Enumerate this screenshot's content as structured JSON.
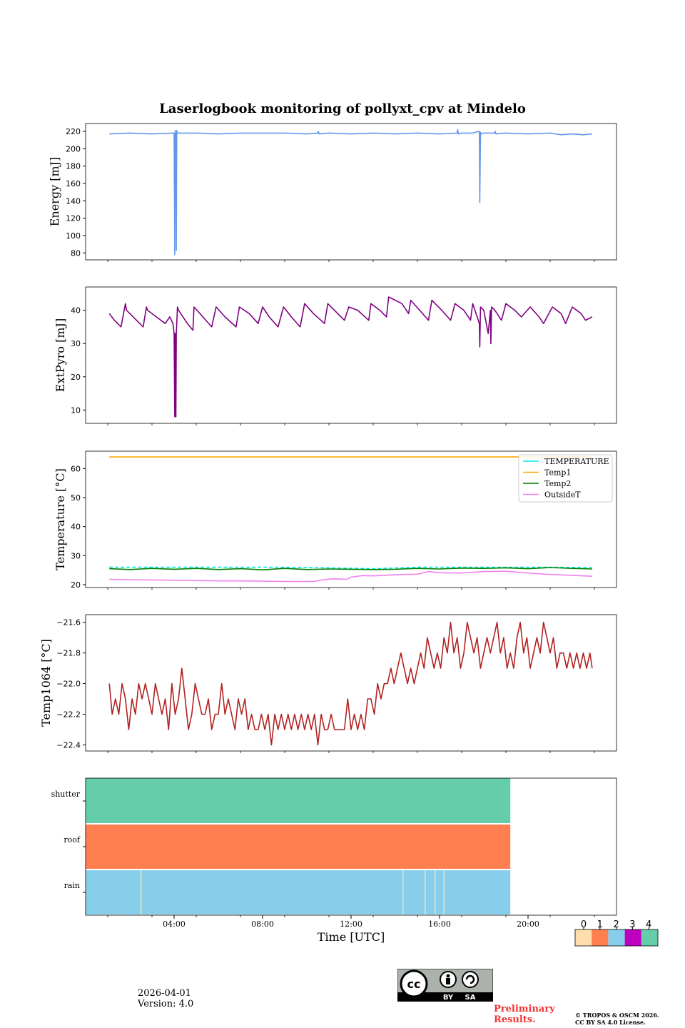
{
  "title": "Laserlogbook monitoring of pollyxt_cpv at Mindelo",
  "xlabel": "Time [UTC]",
  "date": "2026-04-01",
  "version": "Version: 4.0",
  "preliminary_line1": "Preliminary",
  "preliminary_line2": "Results.",
  "copyright_line1": "© TROPOS & OSCM 2026.",
  "copyright_line2": "CC BY SA 4.0 License.",
  "license_badge": {
    "by": "BY",
    "sa": "SA"
  },
  "chart_data": [
    {
      "type": "line",
      "ylabel": "Energy [mJ]",
      "xlim": [
        0.0,
        24.0
      ],
      "ylim": [
        72,
        229
      ],
      "yticks": [
        80,
        100,
        120,
        140,
        160,
        180,
        200,
        220
      ],
      "xticks_hours": [
        1,
        3,
        5,
        7,
        9,
        11,
        13,
        15,
        17,
        19,
        21,
        23
      ],
      "color": "#6495ED",
      "series": [
        {
          "name": "Energy",
          "x": [
            1.07,
            2.0,
            3.0,
            3.95,
            4.0,
            4.03,
            4.05,
            4.08,
            4.1,
            4.12,
            4.15,
            5.0,
            6.0,
            7.0,
            8.0,
            9.0,
            10.0,
            10.5,
            10.52,
            10.55,
            11.0,
            12.0,
            13.0,
            14.0,
            15.0,
            16.0,
            16.8,
            16.82,
            16.85,
            17.0,
            17.5,
            17.8,
            17.82,
            17.85,
            17.88,
            18.0,
            18.5,
            18.52,
            18.55,
            19.0,
            20.0,
            21.0,
            21.5,
            22.0,
            22.5,
            22.9
          ],
          "y": [
            217,
            218,
            217,
            218,
            218,
            78,
            221,
            213,
            83,
            221,
            218,
            218,
            217,
            218,
            218,
            218,
            217,
            218,
            220,
            217,
            218,
            217,
            218,
            217,
            218,
            217,
            218,
            222,
            217,
            218,
            218,
            220,
            138,
            219,
            217,
            218,
            218,
            220,
            217,
            218,
            217,
            218,
            216,
            217,
            216,
            217
          ]
        }
      ]
    },
    {
      "type": "line",
      "ylabel": "ExtPyro [mJ]",
      "xlim": [
        0.0,
        24.0
      ],
      "ylim": [
        6,
        47
      ],
      "yticks": [
        10,
        20,
        30,
        40
      ],
      "xticks_hours": [
        1,
        3,
        5,
        7,
        9,
        11,
        13,
        15,
        17,
        19,
        21,
        23
      ],
      "color": "#800080",
      "series": [
        {
          "name": "ExtPyro",
          "x": [
            1.07,
            1.3,
            1.6,
            1.8,
            1.85,
            2.3,
            2.6,
            2.75,
            2.8,
            3.2,
            3.6,
            3.8,
            3.95,
            4.0,
            4.03,
            4.05,
            4.08,
            4.1,
            4.15,
            4.2,
            4.6,
            4.85,
            4.9,
            5.3,
            5.7,
            5.9,
            6.3,
            6.8,
            6.95,
            7.4,
            7.8,
            8.0,
            8.3,
            8.7,
            8.95,
            9.3,
            9.7,
            9.9,
            10.3,
            10.8,
            10.95,
            11.4,
            11.7,
            11.9,
            12.3,
            12.8,
            12.9,
            13.3,
            13.6,
            13.7,
            14.3,
            14.6,
            14.7,
            15.1,
            15.5,
            15.65,
            16.1,
            16.5,
            16.7,
            17.1,
            17.4,
            17.5,
            17.8,
            17.82,
            17.85,
            18.0,
            18.2,
            18.3,
            18.32,
            18.35,
            18.5,
            18.8,
            19.0,
            19.4,
            19.7,
            20.1,
            20.5,
            20.7,
            21.1,
            21.5,
            21.7,
            22.0,
            22.4,
            22.6,
            22.9
          ],
          "y": [
            39,
            37,
            35,
            42,
            40,
            37,
            35,
            41,
            40,
            38,
            36,
            38,
            36,
            33,
            8,
            33,
            8,
            33,
            41,
            40,
            36,
            34,
            41,
            38,
            35,
            41,
            38,
            35,
            41,
            39,
            36,
            41,
            38,
            35,
            41,
            38,
            35,
            42,
            39,
            36,
            42,
            39,
            37,
            41,
            40,
            37,
            42,
            40,
            38,
            44,
            42,
            39,
            43,
            40,
            37,
            43,
            40,
            37,
            42,
            40,
            37,
            42,
            36,
            29,
            41,
            40,
            33,
            40,
            30,
            41,
            40,
            37,
            42,
            40,
            38,
            41,
            38,
            36,
            41,
            39,
            36,
            41,
            39,
            37,
            38
          ]
        }
      ]
    },
    {
      "type": "line",
      "ylabel": "Temperature [°C]",
      "xlim": [
        0.0,
        24.0
      ],
      "ylim": [
        19,
        66
      ],
      "yticks": [
        20,
        30,
        40,
        50,
        60
      ],
      "xticks_hours": [
        1,
        3,
        5,
        7,
        9,
        11,
        13,
        15,
        17,
        19,
        21,
        23
      ],
      "legend_placement": "upper right",
      "series": [
        {
          "name": "TEMPERATURE",
          "color": "#00E5E5",
          "dashed": true,
          "x": [
            1.07,
            3.0,
            5.0,
            7.0,
            9.0,
            11.0,
            13.0,
            15.0,
            17.0,
            19.0,
            21.0,
            22.9
          ],
          "y": [
            26,
            26,
            26,
            26,
            26,
            25.8,
            25.5,
            26,
            26,
            26,
            26,
            25.9
          ]
        },
        {
          "name": "Temp1",
          "color": "#FFA500",
          "x": [
            1.07,
            22.9
          ],
          "y": [
            64,
            64
          ]
        },
        {
          "name": "Temp2",
          "color": "#008000",
          "x": [
            1.07,
            2.0,
            3.0,
            4.0,
            5.0,
            6.0,
            7.0,
            8.0,
            9.0,
            10.0,
            11.0,
            12.0,
            13.0,
            14.0,
            15.0,
            16.0,
            17.0,
            18.0,
            19.0,
            20.0,
            21.0,
            22.0,
            22.9
          ],
          "y": [
            25.5,
            25.2,
            25.6,
            25.3,
            25.6,
            25.2,
            25.5,
            25.1,
            25.6,
            25.2,
            25.4,
            25.3,
            25.2,
            25.3,
            25.6,
            25.4,
            25.7,
            25.6,
            25.8,
            25.5,
            25.9,
            25.6,
            25.4
          ]
        },
        {
          "name": "OutsideT",
          "color": "#EE82EE",
          "x": [
            1.07,
            2.0,
            3.0,
            4.0,
            5.0,
            6.0,
            7.0,
            8.0,
            9.0,
            10.0,
            10.3,
            10.6,
            11.0,
            11.3,
            11.8,
            12.0,
            12.5,
            13.0,
            14.0,
            15.0,
            15.5,
            16.0,
            17.0,
            18.0,
            19.0,
            20.0,
            21.0,
            22.0,
            22.9
          ],
          "y": [
            21.8,
            21.7,
            21.6,
            21.5,
            21.4,
            21.3,
            21.3,
            21.2,
            21.1,
            21.1,
            21.1,
            21.5,
            21.9,
            22.0,
            21.8,
            22.6,
            23.1,
            23.0,
            23.4,
            23.6,
            24.5,
            24.1,
            24.0,
            24.5,
            24.6,
            24.0,
            23.5,
            23.2,
            22.9
          ]
        }
      ]
    },
    {
      "type": "line",
      "ylabel": "Temp1064 [°C]",
      "xlim": [
        0.0,
        24.0
      ],
      "ylim": [
        -22.44,
        -21.55
      ],
      "yticks": [
        -21.6,
        -21.8,
        -22.0,
        -22.2,
        -22.4
      ],
      "ytick_labels": [
        "−21.6",
        "−21.8",
        "−22.0",
        "−22.2",
        "−22.4"
      ],
      "xticks_hours": [
        1,
        3,
        5,
        7,
        9,
        11,
        13,
        15,
        17,
        19,
        21,
        23
      ],
      "color": "#B22222",
      "series": [
        {
          "name": "Temp1064",
          "x": [
            1.07,
            1.2,
            1.35,
            1.5,
            1.65,
            1.8,
            1.95,
            2.1,
            2.25,
            2.4,
            2.55,
            2.7,
            2.85,
            3.0,
            3.15,
            3.3,
            3.45,
            3.6,
            3.75,
            3.9,
            4.05,
            4.2,
            4.35,
            4.5,
            4.65,
            4.8,
            4.95,
            5.1,
            5.25,
            5.4,
            5.55,
            5.7,
            5.85,
            6.0,
            6.15,
            6.3,
            6.45,
            6.6,
            6.75,
            6.9,
            7.05,
            7.2,
            7.35,
            7.5,
            7.65,
            7.8,
            7.95,
            8.1,
            8.25,
            8.4,
            8.55,
            8.7,
            8.85,
            9.0,
            9.15,
            9.3,
            9.45,
            9.6,
            9.75,
            9.9,
            10.05,
            10.2,
            10.35,
            10.5,
            10.65,
            10.8,
            10.95,
            11.1,
            11.25,
            11.4,
            11.55,
            11.7,
            11.85,
            12.0,
            12.15,
            12.3,
            12.45,
            12.6,
            12.75,
            12.9,
            13.05,
            13.2,
            13.35,
            13.5,
            13.65,
            13.8,
            13.95,
            14.1,
            14.25,
            14.4,
            14.55,
            14.7,
            14.85,
            15.0,
            15.15,
            15.3,
            15.45,
            15.6,
            15.75,
            15.9,
            16.05,
            16.2,
            16.35,
            16.5,
            16.65,
            16.8,
            16.95,
            17.1,
            17.25,
            17.4,
            17.55,
            17.7,
            17.85,
            18.0,
            18.15,
            18.3,
            18.45,
            18.6,
            18.75,
            18.9,
            19.05,
            19.2,
            19.35,
            19.5,
            19.65,
            19.8,
            19.95,
            20.1,
            20.25,
            20.4,
            20.55,
            20.7,
            20.85,
            21.0,
            21.15,
            21.3,
            21.45,
            21.6,
            21.75,
            21.9,
            22.05,
            22.2,
            22.35,
            22.5,
            22.65,
            22.8,
            22.9
          ],
          "y": [
            -22.0,
            -22.2,
            -22.1,
            -22.2,
            -22.0,
            -22.1,
            -22.3,
            -22.1,
            -22.2,
            -22.0,
            -22.1,
            -22.0,
            -22.1,
            -22.2,
            -22.0,
            -22.1,
            -22.2,
            -22.1,
            -22.3,
            -22.0,
            -22.2,
            -22.1,
            -21.9,
            -22.1,
            -22.3,
            -22.2,
            -22.0,
            -22.1,
            -22.2,
            -22.2,
            -22.1,
            -22.3,
            -22.2,
            -22.2,
            -22.0,
            -22.2,
            -22.1,
            -22.2,
            -22.3,
            -22.1,
            -22.2,
            -22.1,
            -22.3,
            -22.2,
            -22.3,
            -22.3,
            -22.2,
            -22.3,
            -22.2,
            -22.4,
            -22.2,
            -22.3,
            -22.2,
            -22.3,
            -22.2,
            -22.3,
            -22.2,
            -22.3,
            -22.2,
            -22.3,
            -22.2,
            -22.3,
            -22.2,
            -22.4,
            -22.2,
            -22.3,
            -22.3,
            -22.2,
            -22.3,
            -22.3,
            -22.3,
            -22.3,
            -22.1,
            -22.3,
            -22.2,
            -22.3,
            -22.2,
            -22.3,
            -22.1,
            -22.1,
            -22.2,
            -22.0,
            -22.1,
            -22.0,
            -22.0,
            -21.9,
            -22.0,
            -21.9,
            -21.8,
            -21.9,
            -22.0,
            -21.9,
            -22.0,
            -21.9,
            -21.8,
            -21.9,
            -21.7,
            -21.8,
            -21.9,
            -21.8,
            -21.9,
            -21.7,
            -21.8,
            -21.6,
            -21.8,
            -21.7,
            -21.9,
            -21.8,
            -21.6,
            -21.7,
            -21.8,
            -21.7,
            -21.9,
            -21.8,
            -21.7,
            -21.8,
            -21.7,
            -21.6,
            -21.8,
            -21.7,
            -21.9,
            -21.8,
            -21.9,
            -21.7,
            -21.6,
            -21.8,
            -21.7,
            -21.9,
            -21.8,
            -21.7,
            -21.8,
            -21.6,
            -21.7,
            -21.8,
            -21.7,
            -21.9,
            -21.8,
            -21.8,
            -21.9,
            -21.8,
            -21.9,
            -21.8,
            -21.9,
            -21.8,
            -21.9,
            -21.8,
            -21.9
          ]
        }
      ]
    },
    {
      "type": "heatmap",
      "rows": [
        "shutter",
        "roof",
        "rain"
      ],
      "xlim": [
        0.0,
        24.0
      ],
      "xticks_hours": [
        1,
        3,
        5,
        7,
        9,
        11,
        13,
        15,
        17,
        19,
        21,
        23
      ],
      "xtick_labels": [
        {
          "hour": 4,
          "label": "04:00"
        },
        {
          "hour": 8,
          "label": "08:00"
        },
        {
          "hour": 12,
          "label": "12:00"
        },
        {
          "hour": 16,
          "label": "16:00"
        },
        {
          "hour": 20,
          "label": "20:00"
        }
      ],
      "segments": [
        {
          "row": "shutter",
          "start": 0.0,
          "end": 19.2,
          "value": 4
        },
        {
          "row": "roof",
          "start": 0.0,
          "end": 19.2,
          "value": 1
        },
        {
          "row": "rain",
          "start": 0.0,
          "end": 19.2,
          "value": 2
        }
      ],
      "rain_gaps_hours": [
        2.5,
        14.35,
        15.35,
        15.8,
        16.2
      ],
      "colorbar": {
        "ticks": [
          "0",
          "1",
          "2",
          "3",
          "4"
        ],
        "colors": [
          "#FFDEAD",
          "#FF7F50",
          "#87CEEB",
          "#C000C0",
          "#66CDAA"
        ]
      }
    }
  ]
}
